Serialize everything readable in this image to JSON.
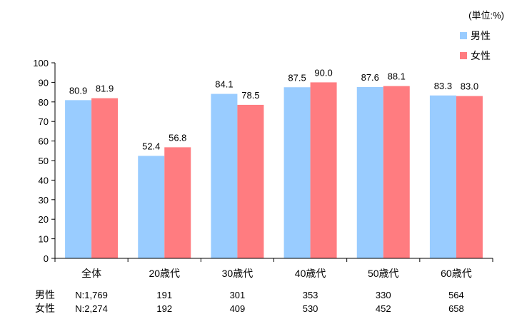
{
  "chart_data": {
    "type": "bar",
    "unit_label": "(単位:%)",
    "categories": [
      "全体",
      "20歳代",
      "30歳代",
      "40歳代",
      "50歳代",
      "60歳代"
    ],
    "series": [
      {
        "name": "男性",
        "color": "#99CCFF",
        "values": [
          80.9,
          52.4,
          84.1,
          87.5,
          87.6,
          83.3
        ],
        "value_labels": [
          "80.9",
          "52.4",
          "84.1",
          "87.5",
          "87.6",
          "83.3"
        ]
      },
      {
        "name": "女性",
        "color": "#FF7C80",
        "values": [
          81.9,
          56.8,
          78.5,
          90.0,
          88.1,
          83.0
        ],
        "value_labels": [
          "81.9",
          "56.8",
          "78.5",
          "90.0",
          "88.1",
          "83.0"
        ]
      }
    ],
    "ylim": [
      0,
      100
    ],
    "yticks": [
      "0",
      "10",
      "20",
      "30",
      "40",
      "50",
      "60",
      "70",
      "80",
      "90",
      "100"
    ],
    "grid": false,
    "legend_position": "top-right",
    "sample_rows": [
      {
        "label": "男性",
        "counts": [
          "N:1,769",
          "191",
          "301",
          "353",
          "330",
          "564"
        ]
      },
      {
        "label": "女性",
        "counts": [
          "N:2,274",
          "192",
          "409",
          "530",
          "452",
          "658"
        ]
      }
    ]
  }
}
